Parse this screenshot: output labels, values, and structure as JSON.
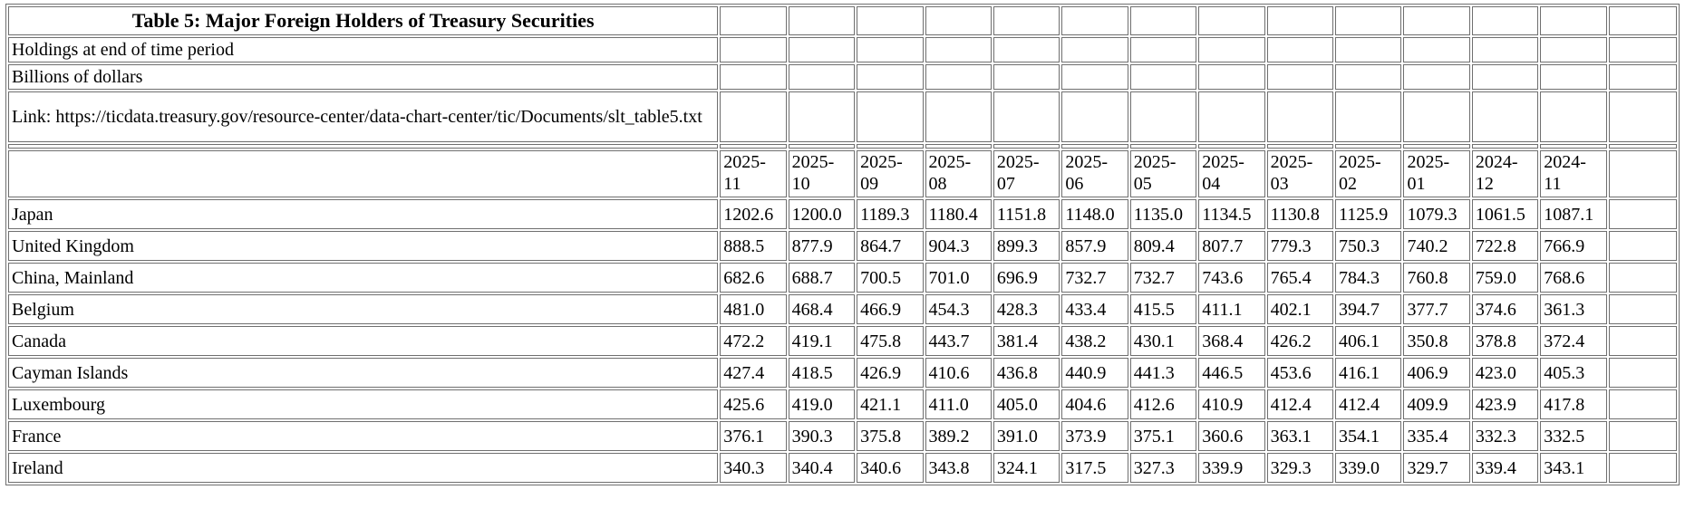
{
  "colors": {
    "background": "#ffffff",
    "text": "#000000",
    "border": "#6f6f6f"
  },
  "chart_data": {
    "type": "table",
    "title": "Table 5: Major Foreign Holders of Treasury Securities",
    "notes": [
      "Holdings at end of time period",
      "Billions of dollars",
      "Link: https://ticdata.treasury.gov/resource-center/data-chart-center/tic/Documents/slt_table5.txt"
    ],
    "units": "Billions of dollars",
    "columns": [
      "2025-11",
      "2025-10",
      "2025-09",
      "2025-08",
      "2025-07",
      "2025-06",
      "2025-05",
      "2025-04",
      "2025-03",
      "2025-02",
      "2025-01",
      "2024-12",
      "2024-11"
    ],
    "series": [
      {
        "name": "Japan",
        "values": [
          1202.6,
          1200.0,
          1189.3,
          1180.4,
          1151.8,
          1148.0,
          1135.0,
          1134.5,
          1130.8,
          1125.9,
          1079.3,
          1061.5,
          1087.1
        ]
      },
      {
        "name": "United Kingdom",
        "values": [
          888.5,
          877.9,
          864.7,
          904.3,
          899.3,
          857.9,
          809.4,
          807.7,
          779.3,
          750.3,
          740.2,
          722.8,
          766.9
        ]
      },
      {
        "name": "China, Mainland",
        "values": [
          682.6,
          688.7,
          700.5,
          701.0,
          696.9,
          732.7,
          732.7,
          743.6,
          765.4,
          784.3,
          760.8,
          759.0,
          768.6
        ]
      },
      {
        "name": "Belgium",
        "values": [
          481.0,
          468.4,
          466.9,
          454.3,
          428.3,
          433.4,
          415.5,
          411.1,
          402.1,
          394.7,
          377.7,
          374.6,
          361.3
        ]
      },
      {
        "name": "Canada",
        "values": [
          472.2,
          419.1,
          475.8,
          443.7,
          381.4,
          438.2,
          430.1,
          368.4,
          426.2,
          406.1,
          350.8,
          378.8,
          372.4
        ]
      },
      {
        "name": "Cayman Islands",
        "values": [
          427.4,
          418.5,
          426.9,
          410.6,
          436.8,
          440.9,
          441.3,
          446.5,
          453.6,
          416.1,
          406.9,
          423.0,
          405.3
        ]
      },
      {
        "name": "Luxembourg",
        "values": [
          425.6,
          419.0,
          421.1,
          411.0,
          405.0,
          404.6,
          412.6,
          410.9,
          412.4,
          412.4,
          409.9,
          423.9,
          417.8
        ]
      },
      {
        "name": "France",
        "values": [
          376.1,
          390.3,
          375.8,
          389.2,
          391.0,
          373.9,
          375.1,
          360.6,
          363.1,
          354.1,
          335.4,
          332.3,
          332.5
        ]
      },
      {
        "name": "Ireland",
        "values": [
          340.3,
          340.4,
          340.6,
          343.8,
          324.1,
          317.5,
          327.3,
          339.9,
          329.3,
          339.0,
          329.7,
          339.4,
          343.1
        ]
      }
    ]
  }
}
